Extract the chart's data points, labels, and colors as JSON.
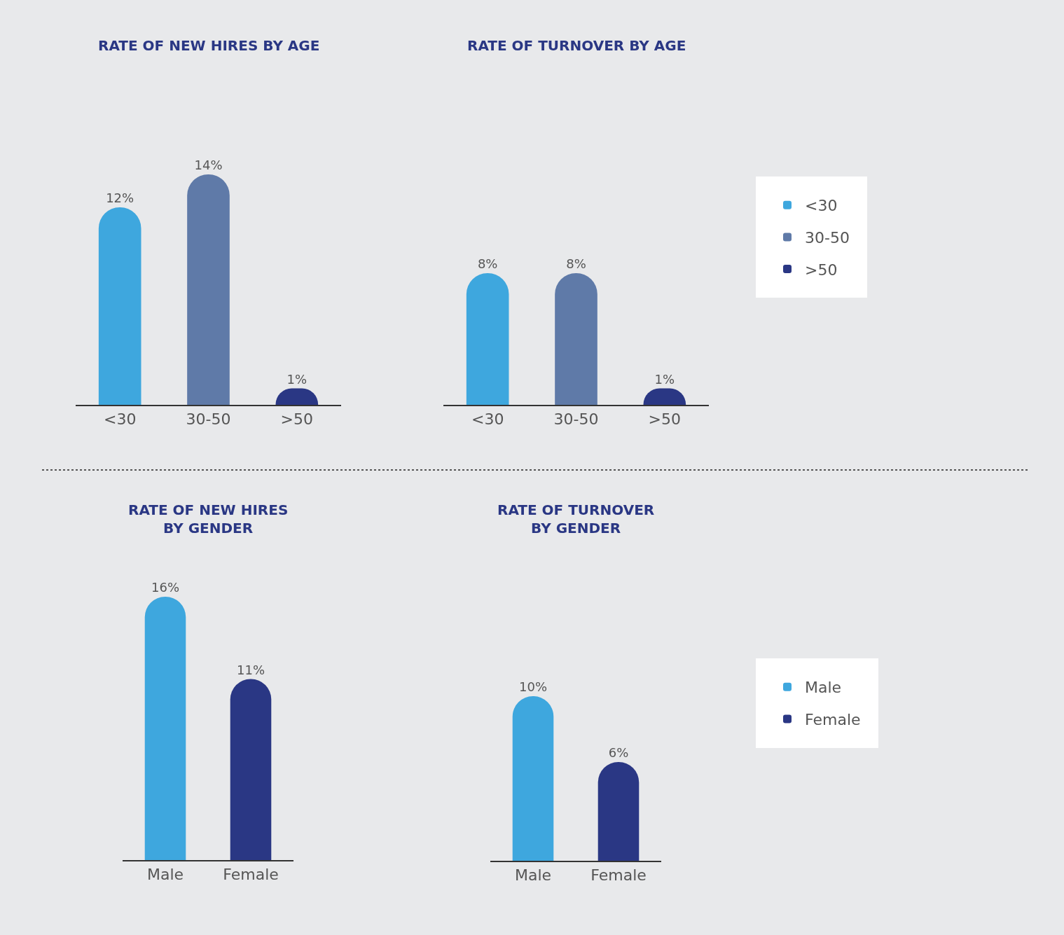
{
  "chart_data": [
    {
      "type": "bar",
      "title": "RATE OF NEW HIRES BY AGE",
      "categories": [
        "<30",
        "30-50",
        ">50"
      ],
      "values": [
        12,
        14,
        1
      ],
      "colors": [
        "#3ea7de",
        "#5f7aa8",
        "#2a3784"
      ],
      "value_labels": [
        "12%",
        "14%",
        "1%"
      ]
    },
    {
      "type": "bar",
      "title": "RATE OF TURNOVER BY AGE",
      "categories": [
        "<30",
        "30-50",
        ">50"
      ],
      "legend": "right",
      "series": [
        {
          "name": "<30",
          "color": "#3ea7de",
          "values": [
            8,
            null,
            null
          ],
          "value_labels": [
            "8%",
            null,
            null
          ]
        },
        {
          "name": "30-50",
          "color": "#5f7aa8",
          "values": [
            null,
            8,
            null
          ],
          "value_labels": [
            null,
            "8%",
            null
          ]
        },
        {
          "name": ">50",
          "color": "#2a3784",
          "values": [
            null,
            null,
            1
          ],
          "value_labels": [
            null,
            null,
            "1%"
          ]
        }
      ]
    },
    {
      "type": "bar",
      "title": "RATE OF NEW HIRES\nBY GENDER",
      "categories": [
        "Male",
        "Female"
      ],
      "values": [
        16,
        11
      ],
      "colors": [
        "#3ea7de",
        "#2a3784"
      ],
      "value_labels": [
        "16%",
        "11%"
      ]
    },
    {
      "type": "bar",
      "title": "RATE OF TURNOVER\nBY GENDER",
      "categories": [
        "Male",
        "Female"
      ],
      "legend": "right",
      "series": [
        {
          "name": "Male",
          "color": "#3ea7de",
          "values": [
            10,
            null
          ],
          "value_labels": [
            "10%",
            null
          ]
        },
        {
          "name": "Female",
          "color": "#2a3784",
          "values": [
            null,
            6
          ],
          "value_labels": [
            null,
            "6%"
          ]
        }
      ]
    }
  ]
}
